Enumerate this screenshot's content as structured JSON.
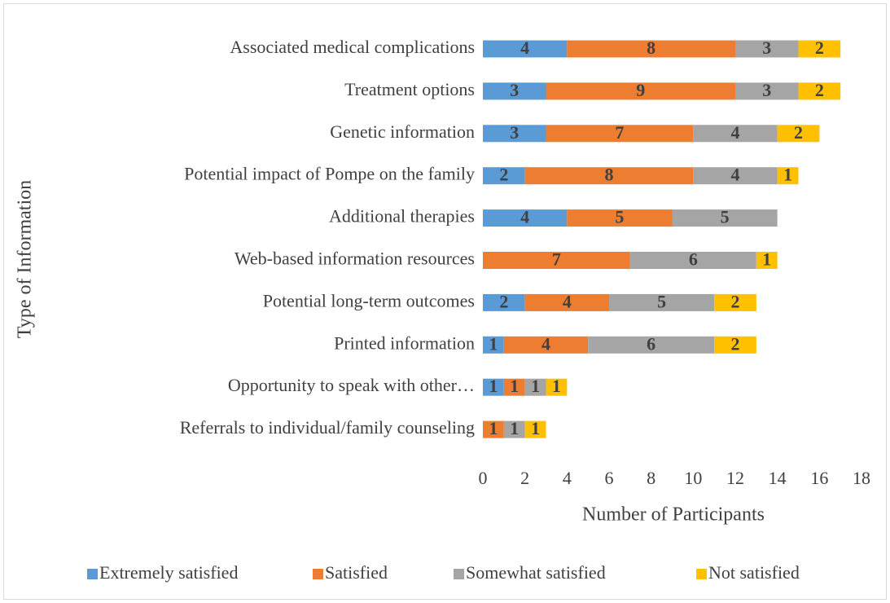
{
  "chart_data": {
    "type": "stacked-horizontal-bar",
    "xlabel": "Number of Participants",
    "ylabel": "Type of Information",
    "categories": [
      "Associated medical complications",
      "Treatment options",
      "Genetic information",
      "Potential impact of Pompe on the family",
      "Additional therapies",
      "Web-based information resources",
      "Potential long-term outcomes",
      "Printed information",
      "Opportunity to speak with other…",
      "Referrals to individual/family counseling"
    ],
    "series": [
      {
        "name": "Extremely satisfied",
        "color": "#5b9bd5",
        "values": [
          4,
          3,
          3,
          2,
          4,
          null,
          2,
          1,
          1,
          null
        ]
      },
      {
        "name": "Satisfied",
        "color": "#ed7d31",
        "values": [
          8,
          9,
          7,
          8,
          5,
          7,
          4,
          4,
          1,
          1
        ]
      },
      {
        "name": "Somewhat satisfied",
        "color": "#a5a5a5",
        "values": [
          3,
          3,
          4,
          4,
          5,
          6,
          5,
          6,
          1,
          1
        ]
      },
      {
        "name": "Not satisfied",
        "color": "#ffc000",
        "values": [
          2,
          2,
          2,
          1,
          null,
          1,
          2,
          2,
          1,
          1
        ]
      }
    ],
    "xlim": [
      0,
      18
    ],
    "xticks": [
      0,
      2,
      4,
      6,
      8,
      10,
      12,
      14,
      16,
      18
    ],
    "grid": false,
    "legend": "bottom"
  }
}
